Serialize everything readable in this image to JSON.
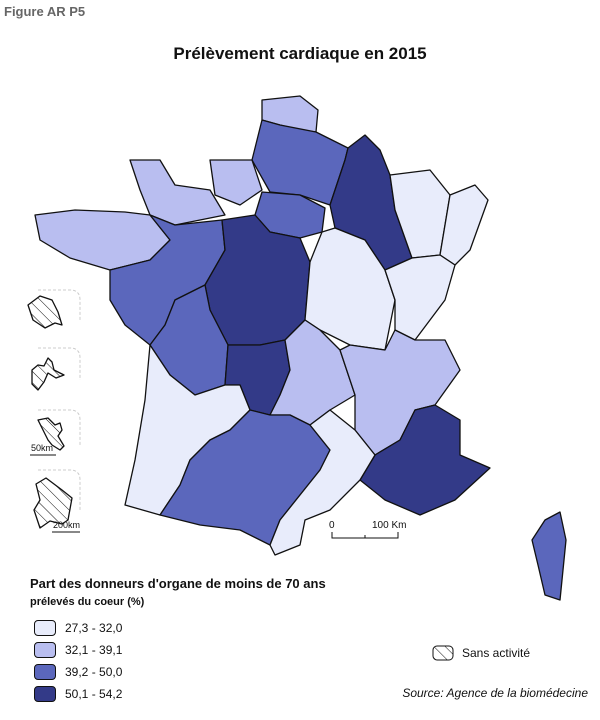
{
  "figure_label": "Figure AR P5",
  "title": "Prélèvement cardiaque en 2015",
  "legend": {
    "title": "Part des donneurs d'organe de moins de 70 ans",
    "subtitle": "prélevés du coeur (%)",
    "classes": [
      {
        "label": "27,3 - 32,0",
        "color": "#e8ecfb"
      },
      {
        "label": "32,1 - 39,1",
        "color": "#b9bef0"
      },
      {
        "label": "39,2 - 50,0",
        "color": "#5b67bc"
      },
      {
        "label": "50,1 - 54,2",
        "color": "#333a88"
      }
    ],
    "no_activity": "Sans activité"
  },
  "regions": [
    {
      "name": "Nord-Pas-de-Calais",
      "class": 1
    },
    {
      "name": "Picardie",
      "class": 2
    },
    {
      "name": "Haute-Normandie",
      "class": 1
    },
    {
      "name": "Basse-Normandie",
      "class": 1
    },
    {
      "name": "Ile-de-France",
      "class": 2
    },
    {
      "name": "Champagne-Ardenne",
      "class": 3
    },
    {
      "name": "Lorraine",
      "class": 0
    },
    {
      "name": "Alsace",
      "class": 0
    },
    {
      "name": "Bretagne",
      "class": 1
    },
    {
      "name": "Pays de la Loire",
      "class": 2
    },
    {
      "name": "Centre",
      "class": 3
    },
    {
      "name": "Bourgogne",
      "class": 0
    },
    {
      "name": "Franche-Comté",
      "class": 0
    },
    {
      "name": "Poitou-Charentes",
      "class": 2
    },
    {
      "name": "Limousin",
      "class": 3
    },
    {
      "name": "Auvergne",
      "class": 1
    },
    {
      "name": "Rhône-Alpes",
      "class": 1
    },
    {
      "name": "Provence-Alpes-Côte d'Azur",
      "class": 3
    },
    {
      "name": "Aquitaine",
      "class": 0
    },
    {
      "name": "Midi-Pyrénées",
      "class": 2
    },
    {
      "name": "Languedoc-Roussillon",
      "class": 0
    },
    {
      "name": "Corse",
      "class": 2
    }
  ],
  "overseas": [
    "La Réunion",
    "Guadeloupe",
    "Martinique",
    "Guyane"
  ],
  "scales": {
    "main_0": "0",
    "main_100": "100 Km",
    "inset_50": "50km",
    "inset_200": "200km"
  },
  "source": "Source: Agence de la biomédecine"
}
